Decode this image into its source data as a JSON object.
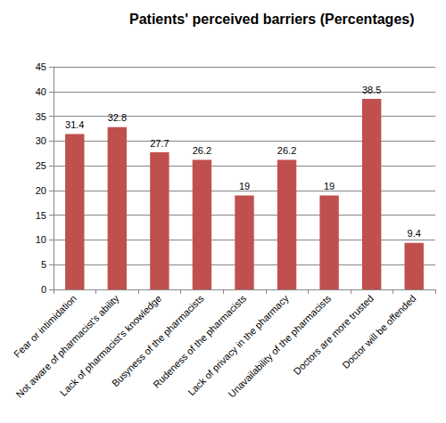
{
  "chart_data": {
    "type": "bar",
    "title": "Patients' perceived barriers (Percentages)",
    "categories": [
      "Fear or intimidation",
      "Not aware of pharmacist's ability",
      "Lack of pharmacist's knowledge",
      "Busyness of the pharmacists",
      "Rudeness of the pharmacists",
      "Lack of privacy in the pharmacy",
      "Unavailability of the pharmacists",
      "Doctors are more trusted",
      "Doctor will be offended"
    ],
    "values": [
      31.4,
      32.8,
      27.7,
      26.2,
      19,
      26.2,
      19,
      38.5,
      9.4
    ],
    "color": "#c0504d",
    "ylim": [
      0,
      45
    ],
    "yticks": [
      0,
      5,
      10,
      15,
      20,
      25,
      30,
      35,
      40,
      45
    ],
    "grid": true,
    "data_labels": true
  }
}
